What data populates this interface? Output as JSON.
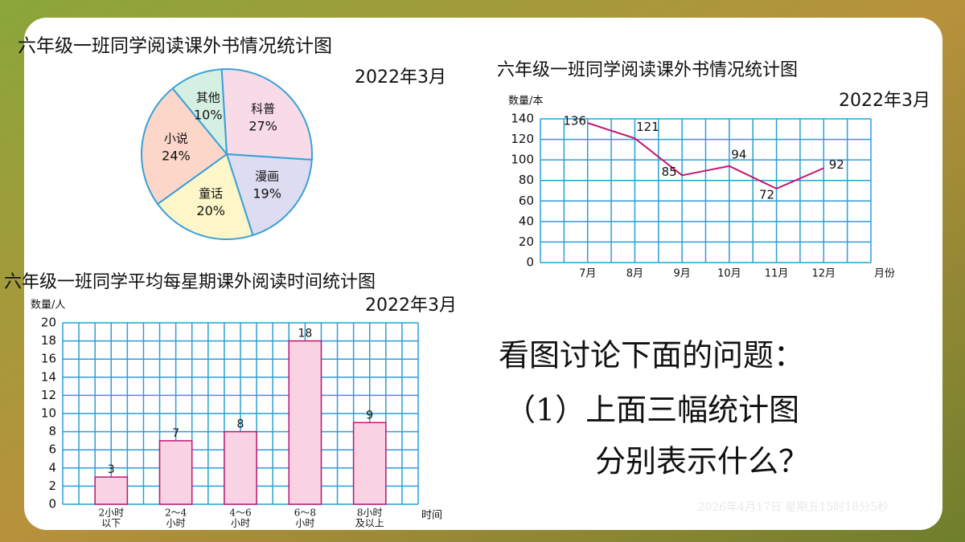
{
  "chart_data": [
    {
      "type": "pie",
      "title": "六年级一班同学阅读课外书情况统计图",
      "subtitle": "2022年3月",
      "categories": [
        "科普",
        "漫画",
        "童话",
        "小说",
        "其他"
      ],
      "values": [
        27,
        19,
        20,
        24,
        10
      ],
      "value_labels": [
        "27%",
        "19%",
        "20%",
        "24%",
        "10%"
      ],
      "colors": [
        "#f9dbe8",
        "#dedcf1",
        "#fcf6c9",
        "#fbd6c9",
        "#d5efe3"
      ],
      "edge_color": "#3aa0d8"
    },
    {
      "type": "line",
      "title": "六年级一班同学阅读课外书情况统计图",
      "subtitle": "2022年3月",
      "y_label": "数量/本",
      "x_label": "月份",
      "categories": [
        "7月",
        "8月",
        "9月",
        "10月",
        "11月",
        "12月"
      ],
      "values": [
        136,
        121,
        85,
        94,
        72,
        92
      ],
      "color": "#c2186f",
      "grid_color": "#2a9fd6",
      "ylim": [
        0,
        140
      ],
      "yticks": [
        0,
        20,
        40,
        60,
        80,
        100,
        120,
        140
      ],
      "grid": true
    },
    {
      "type": "bar",
      "title": "六年级一班同学平均每星期课外阅读时间统计图",
      "subtitle": "2022年3月",
      "y_label": "数量/人",
      "x_label": "时间",
      "categories": [
        [
          "2小时",
          "以下"
        ],
        [
          "2～4",
          "小时"
        ],
        [
          "4～6",
          "小时"
        ],
        [
          "6～8",
          "小时"
        ],
        [
          "8小时",
          "及以上"
        ]
      ],
      "values": [
        3,
        7,
        8,
        18,
        9
      ],
      "color": "#f9d3e3",
      "edge_color": "#c2186f",
      "grid_color": "#2a9fd6",
      "ylim": [
        0,
        20
      ],
      "yticks": [
        0,
        2,
        4,
        6,
        8,
        10,
        12,
        14,
        16,
        18,
        20
      ],
      "grid": true
    }
  ],
  "question": {
    "heading": "看图讨论下面的问题：",
    "line1": "（1）上面三幅统计图",
    "line2": "分别表示什么？"
  },
  "timestamp": "2026年4月17日 星期五15时18分5秒"
}
